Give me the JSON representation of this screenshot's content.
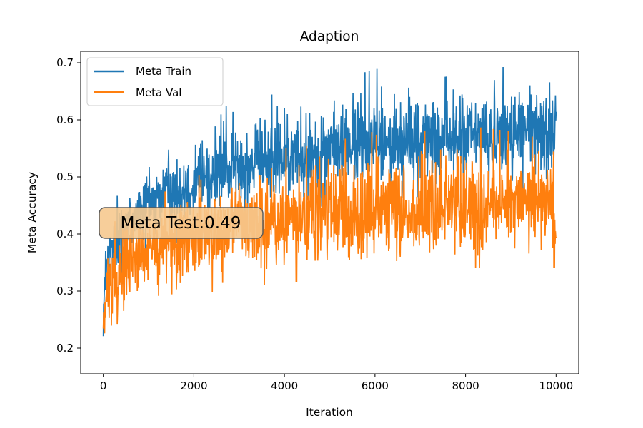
{
  "chart_data": {
    "type": "line",
    "title": "Adaption",
    "xlabel": "Iteration",
    "ylabel": "Meta Accuracy",
    "xlim": [
      -500,
      10500
    ],
    "ylim": [
      0.155,
      0.72
    ],
    "xticks": [
      0,
      2000,
      4000,
      6000,
      8000,
      10000
    ],
    "xtick_labels": [
      "0",
      "2000",
      "4000",
      "6000",
      "8000",
      "10000"
    ],
    "yticks": [
      0.2,
      0.3,
      0.4,
      0.5,
      0.6,
      0.7
    ],
    "ytick_labels": [
      "0.2",
      "0.3",
      "0.4",
      "0.5",
      "0.6",
      "0.7"
    ],
    "grid": false,
    "legend": {
      "position": "top-left",
      "entries": [
        "Meta Train",
        "Meta Val"
      ]
    },
    "annotation": {
      "text": "Meta Test:0.49",
      "x": 1700,
      "y": 0.422
    },
    "series": [
      {
        "name": "Meta Train",
        "color": "#1f77b4",
        "x": [
          0,
          100,
          250,
          500,
          750,
          1000,
          1500,
          2000,
          2500,
          3000,
          4000,
          5000,
          6000,
          7000,
          8000,
          9000,
          10000
        ],
        "center": [
          0.27,
          0.36,
          0.39,
          0.42,
          0.44,
          0.455,
          0.475,
          0.49,
          0.505,
          0.515,
          0.53,
          0.545,
          0.555,
          0.565,
          0.57,
          0.575,
          0.58
        ],
        "high": [
          0.33,
          0.41,
          0.46,
          0.49,
          0.51,
          0.53,
          0.55,
          0.61,
          0.62,
          0.63,
          0.65,
          0.66,
          0.69,
          0.67,
          0.68,
          0.695,
          0.695
        ],
        "low": [
          0.19,
          0.25,
          0.29,
          0.32,
          0.34,
          0.36,
          0.38,
          0.4,
          0.42,
          0.43,
          0.44,
          0.45,
          0.46,
          0.465,
          0.47,
          0.47,
          0.47
        ]
      },
      {
        "name": "Meta Val",
        "color": "#ff7f0e",
        "x": [
          0,
          100,
          250,
          500,
          750,
          1000,
          1500,
          2000,
          2500,
          3000,
          4000,
          5000,
          6000,
          7000,
          8000,
          9000,
          10000
        ],
        "center": [
          0.24,
          0.3,
          0.33,
          0.345,
          0.36,
          0.37,
          0.385,
          0.395,
          0.405,
          0.41,
          0.42,
          0.43,
          0.435,
          0.44,
          0.445,
          0.45,
          0.45
        ],
        "high": [
          0.3,
          0.38,
          0.42,
          0.5,
          0.45,
          0.46,
          0.48,
          0.5,
          0.51,
          0.53,
          0.55,
          0.56,
          0.58,
          0.58,
          0.59,
          0.58,
          0.56
        ],
        "low": [
          0.175,
          0.2,
          0.22,
          0.25,
          0.26,
          0.265,
          0.27,
          0.29,
          0.3,
          0.31,
          0.31,
          0.33,
          0.34,
          0.33,
          0.34,
          0.34,
          0.34
        ]
      }
    ]
  }
}
